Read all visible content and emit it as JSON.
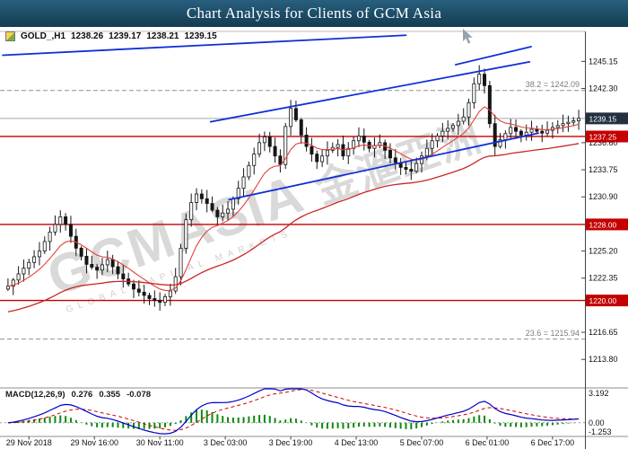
{
  "title_bar": {
    "title": "Chart Analysis for Clients of GCM Asia"
  },
  "chart_header": {
    "symbol": "GOLD_,H1",
    "open": "1238.26",
    "high": "1239.17",
    "low": "1238.21",
    "close": "1239.15"
  },
  "watermark": {
    "main": "GCMASIA",
    "cjk": "金滙亞洲",
    "sub": "GLOBAL CAPITAL MARKETS"
  },
  "chart_data": {
    "type": "candlestick+macd",
    "symbol": "GOLD_",
    "timeframe": "H1",
    "num_candles": 110,
    "first_open": 1221.2,
    "close_waypoints": [
      [
        0,
        1221.5
      ],
      [
        2,
        1222.8
      ],
      [
        4,
        1224.0
      ],
      [
        6,
        1225.2
      ],
      [
        8,
        1227.2
      ],
      [
        10,
        1228.8
      ],
      [
        11,
        1228.0
      ],
      [
        13,
        1225.5
      ],
      [
        15,
        1223.8
      ],
      [
        17,
        1223.2
      ],
      [
        19,
        1224.3
      ],
      [
        21,
        1222.8
      ],
      [
        24,
        1221.2
      ],
      [
        27,
        1220.2
      ],
      [
        29,
        1219.8
      ],
      [
        31,
        1221.0
      ],
      [
        32,
        1222.5
      ],
      [
        33,
        1225.5
      ],
      [
        34,
        1228.5
      ],
      [
        35,
        1230.3
      ],
      [
        36,
        1231.2
      ],
      [
        38,
        1230.2
      ],
      [
        40,
        1228.8
      ],
      [
        42,
        1229.6
      ],
      [
        44,
        1231.8
      ],
      [
        46,
        1234.2
      ],
      [
        48,
        1236.6
      ],
      [
        49,
        1237.2
      ],
      [
        51,
        1235.2
      ],
      [
        52,
        1234.3
      ],
      [
        53,
        1238.3
      ],
      [
        54,
        1240.2
      ],
      [
        55,
        1239.0
      ],
      [
        56,
        1237.4
      ],
      [
        57,
        1236.2
      ],
      [
        59,
        1234.6
      ],
      [
        61,
        1235.8
      ],
      [
        63,
        1236.4
      ],
      [
        64,
        1235.2
      ],
      [
        66,
        1236.8
      ],
      [
        67,
        1237.3
      ],
      [
        69,
        1236.0
      ],
      [
        71,
        1236.6
      ],
      [
        73,
        1235.0
      ],
      [
        75,
        1234.0
      ],
      [
        77,
        1233.6
      ],
      [
        79,
        1235.2
      ],
      [
        81,
        1236.8
      ],
      [
        83,
        1237.8
      ],
      [
        85,
        1238.4
      ],
      [
        87,
        1239.3
      ],
      [
        88,
        1240.8
      ],
      [
        89,
        1242.8
      ],
      [
        90,
        1243.8
      ],
      [
        91,
        1242.6
      ],
      [
        92,
        1238.6
      ],
      [
        93,
        1236.2
      ],
      [
        94,
        1236.9
      ],
      [
        96,
        1238.2
      ],
      [
        98,
        1237.4
      ],
      [
        100,
        1238.0
      ],
      [
        102,
        1237.6
      ],
      [
        104,
        1238.2
      ],
      [
        106,
        1238.6
      ],
      [
        108,
        1238.9
      ],
      [
        109,
        1239.15
      ]
    ],
    "price_axis": {
      "visible_range": {
        "min": 1210.8,
        "max": 1248.3
      },
      "ticks": [
        1245.15,
        1242.3,
        1236.6,
        1233.75,
        1230.9,
        1225.2,
        1222.35,
        1216.65,
        1213.8
      ]
    },
    "bid": {
      "price": 1239.15,
      "label": "1239.15",
      "badge_color": "#22303f"
    },
    "levels": [
      {
        "price": 1237.25,
        "label": "1237.25"
      },
      {
        "price": 1228.0,
        "label": "1228.00"
      },
      {
        "price": 1220.0,
        "label": "1220.00"
      }
    ],
    "level_color": "#c40000",
    "fib_levels": [
      {
        "label": "38.2 = 1242.09",
        "price": 1242.09
      },
      {
        "label": "23.6 = 1215.94",
        "price": 1215.94
      }
    ],
    "trendlines": [
      {
        "name": "trendline-top",
        "i1": -1,
        "p1": 1245.8,
        "i2": 76,
        "p2": 1247.9
      },
      {
        "name": "trendline-upper-channel",
        "i1": 38.7,
        "p1": 1238.8,
        "i2": 99.6,
        "p2": 1245.1
      },
      {
        "name": "trendline-lower-channel",
        "i1": 42.2,
        "p1": 1230.6,
        "i2": 101.3,
        "p2": 1237.6
      },
      {
        "name": "trendline-top-right",
        "i1": 85.5,
        "p1": 1244.8,
        "i2": 99.9,
        "p2": 1246.7
      }
    ],
    "trendline_color": "#0f2fd8",
    "moving_averages": [
      {
        "period": 10,
        "color": "#e2403c",
        "width": 1.1
      },
      {
        "period": 55,
        "seed": 1218.7,
        "color": "#c92727",
        "width": 1.3
      }
    ],
    "macd": {
      "label": "MACD(12,26,9)",
      "values": [
        "0.276",
        "0.355",
        "-0.078"
      ],
      "fast": 12,
      "slow": 26,
      "signal_period": 9,
      "range": {
        "min": -1.253,
        "max": 3.192
      },
      "axis_ticks": [
        {
          "v": 3.192,
          "text": "3.192"
        },
        {
          "v": 0,
          "text": "0.00"
        },
        {
          "v": -1.253,
          "text": "-1.253"
        }
      ],
      "colors": {
        "macd": "#0000c8",
        "signal": "#d40000",
        "histogram": "#0c8a0c"
      }
    },
    "time_axis": {
      "labels": [
        {
          "text": "29 Nov 2018",
          "i": 4
        },
        {
          "text": "29 Nov 16:00",
          "i": 16.5
        },
        {
          "text": "30 Nov 11:00",
          "i": 29
        },
        {
          "text": "3 Dec 03:00",
          "i": 41.5
        },
        {
          "text": "3 Dec 19:00",
          "i": 54
        },
        {
          "text": "4 Dec 13:00",
          "i": 66.5
        },
        {
          "text": "5 Dec 07:00",
          "i": 79
        },
        {
          "text": "6 Dec 01:00",
          "i": 91.5
        },
        {
          "text": "6 Dec 17:00",
          "i": 104
        }
      ]
    }
  }
}
